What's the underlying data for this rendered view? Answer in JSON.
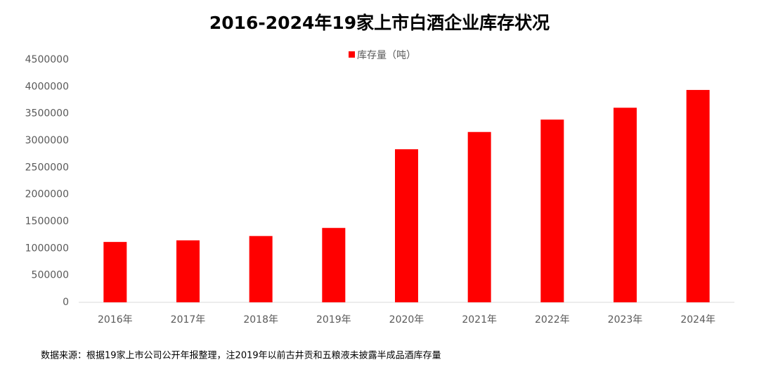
{
  "chart_data": {
    "type": "bar",
    "title": "2016-2024年19家上市白酒企业库存状况",
    "legend": "top",
    "categories": [
      "2016年",
      "2017年",
      "2018年",
      "2019年",
      "2020年",
      "2021年",
      "2022年",
      "2023年",
      "2024年"
    ],
    "series": [
      {
        "name": "库存量（吨）",
        "color": "#ff0000",
        "values": [
          1120000,
          1150000,
          1230000,
          1380000,
          2840000,
          3160000,
          3390000,
          3610000,
          3940000
        ]
      }
    ],
    "ylim": [
      0,
      4500000
    ],
    "yticks": [
      0,
      500000,
      1000000,
      1500000,
      2000000,
      2500000,
      3000000,
      3500000,
      4000000,
      4500000
    ],
    "grid": false,
    "source": "数据来源：根据19家上市公司公开年报整理，注2019年以前古井贡和五粮液未披露半成品酒库存量"
  }
}
